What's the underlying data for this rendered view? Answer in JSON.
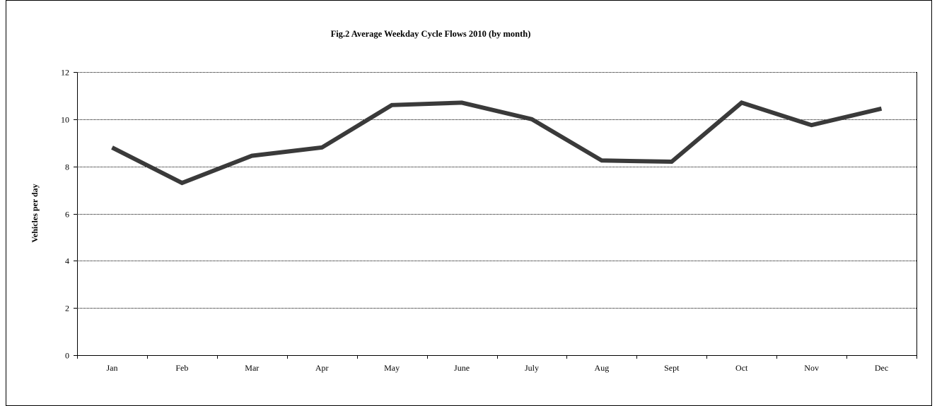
{
  "chart_data": {
    "type": "line",
    "title": "Fig.2 Average Weekday Cycle Flows 2010 (by month)",
    "xlabel": "",
    "ylabel": "Vehicles per day",
    "categories": [
      "Jan",
      "Feb",
      "Mar",
      "Apr",
      "May",
      "June",
      "July",
      "Aug",
      "Sept",
      "Oct",
      "Nov",
      "Dec"
    ],
    "series": [
      {
        "values": [
          8.8,
          7.3,
          8.45,
          8.8,
          10.6,
          10.7,
          10.0,
          8.25,
          8.2,
          10.7,
          9.75,
          10.45
        ],
        "color": "#3a3a3a"
      }
    ],
    "ylim": [
      0,
      12
    ],
    "yticks": [
      0,
      2,
      4,
      6,
      8,
      10,
      12
    ],
    "grid": true,
    "grid_style": "dotted horizontal",
    "legend": "none",
    "colors": {
      "line": "#3a3a3a",
      "axis": "#000000",
      "grid": "#000000",
      "background": "#ffffff"
    }
  }
}
